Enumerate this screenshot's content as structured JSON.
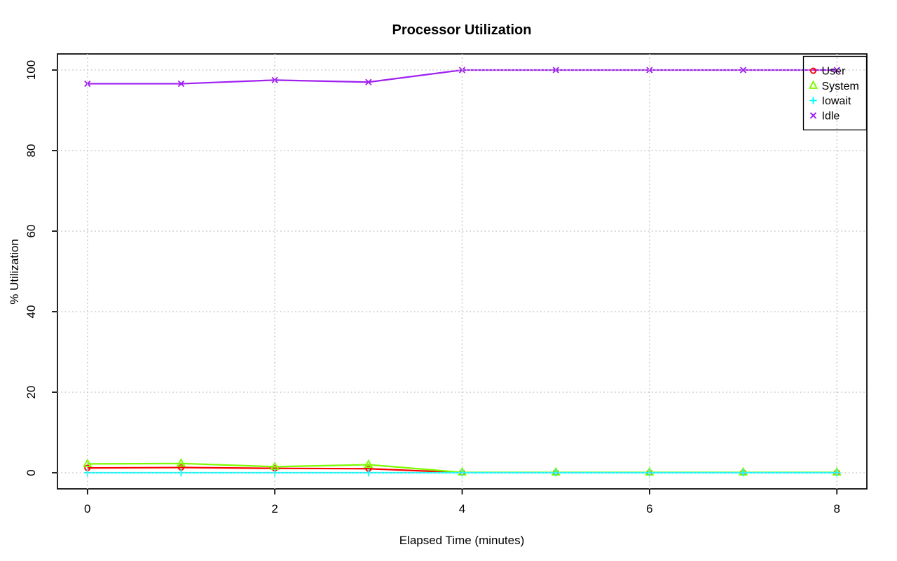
{
  "window": {
    "background": "#ffffff"
  },
  "chart_data": {
    "type": "line",
    "title": "Processor Utilization",
    "xlabel": "Elapsed Time (minutes)",
    "ylabel": "% Utilization",
    "x": [
      0,
      1,
      2,
      3,
      4,
      5,
      6,
      7,
      8
    ],
    "xlim": [
      0,
      8
    ],
    "ylim": [
      0,
      100
    ],
    "xticks": [
      0,
      2,
      4,
      6,
      8
    ],
    "yticks": [
      0,
      20,
      40,
      60,
      80,
      100
    ],
    "xtick_labels": [
      "0",
      "2",
      "4",
      "6",
      "8"
    ],
    "ytick_labels": [
      "0",
      "20",
      "40",
      "60",
      "80",
      "100"
    ],
    "grid": "dotted light-gray gridlines at all ticks, drawn over the data lines",
    "legend_position": "top-right",
    "legend_border": true,
    "series": [
      {
        "name": "User",
        "marker": "circle",
        "color": "#ff0000",
        "values": [
          1.2,
          1.3,
          1.1,
          1.0,
          0.05,
          0.05,
          0.05,
          0.05,
          0.05
        ]
      },
      {
        "name": "System",
        "marker": "triangle",
        "color": "#7cfc00",
        "values": [
          2.2,
          2.3,
          1.5,
          2.0,
          0.1,
          0.1,
          0.1,
          0.1,
          0.1
        ]
      },
      {
        "name": "Iowait",
        "marker": "plus",
        "color": "#00ffff",
        "values": [
          0,
          0,
          0,
          0,
          0,
          0,
          0,
          0,
          0
        ]
      },
      {
        "name": "Idle",
        "marker": "x",
        "color": "#a020f0",
        "values": [
          96.6,
          96.6,
          97.5,
          97.0,
          100,
          100,
          100,
          100,
          100
        ]
      }
    ]
  }
}
